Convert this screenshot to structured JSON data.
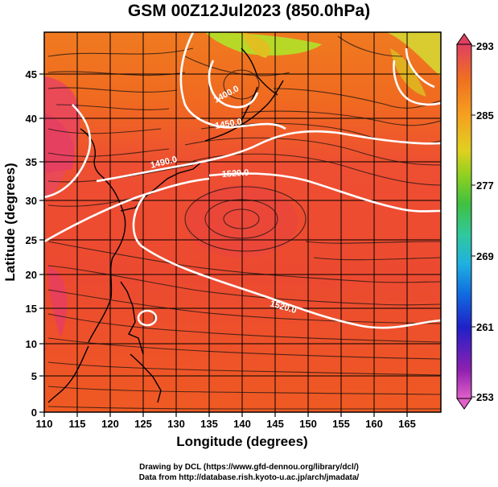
{
  "title": "GSM 00Z12Jul2023 (850.0hPa)",
  "x_axis": {
    "label": "Longitude (degrees)",
    "ticks": [
      "110",
      "115",
      "120",
      "125",
      "130",
      "135",
      "140",
      "145",
      "150",
      "155",
      "160",
      "165"
    ]
  },
  "y_axis": {
    "label": "Latitude  (degrees)",
    "ticks": [
      "0",
      "5",
      "10",
      "15",
      "20",
      "25",
      "30",
      "35",
      "40",
      "45"
    ]
  },
  "colorbar": {
    "ticks": [
      "293",
      "285",
      "277",
      "269",
      "261",
      "253"
    ],
    "colors": [
      "#e060c8",
      "#9020b0",
      "#2020c8",
      "#1070e0",
      "#20b0e0",
      "#30c8a0",
      "#40c040",
      "#90d020",
      "#e0d020",
      "#f5a020",
      "#f07020",
      "#e84030",
      "#e04060"
    ]
  },
  "contours": [
    {
      "label": "1400.0"
    },
    {
      "label": "1450.0"
    },
    {
      "label": "1490.0"
    },
    {
      "label": "1520.0"
    },
    {
      "label": "1520.0"
    }
  ],
  "credits": {
    "line1": "Drawing by DCL (https://www.gfd-dennou.org/library/dcl/)",
    "line2": "Data from http://database.rish.kyoto-u.ac.jp/arch/jmadata/"
  }
}
